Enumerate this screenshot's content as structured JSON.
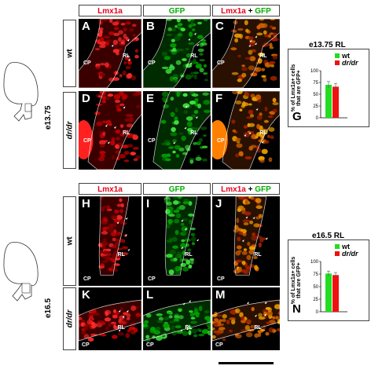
{
  "figure": {
    "stage_top": "e13.75",
    "stage_bottom": "e16.5",
    "header_lmx": "Lmx1a",
    "header_gfp": "GFP",
    "header_merge_a": "Lmx1a",
    "header_merge_plus": " + ",
    "header_merge_b": "GFP",
    "row_wt": "wt",
    "row_drdr": "dr/dr",
    "panel_labels": {
      "A": "A",
      "B": "B",
      "C": "C",
      "D": "D",
      "E": "E",
      "F": "F",
      "H": "H",
      "I": "I",
      "J": "J",
      "K": "K",
      "L": "L",
      "M": "M"
    },
    "tissue_cp": "CP",
    "tissue_rl": "RL",
    "colors": {
      "lmx": "#e8001c",
      "gfp": "#00b000",
      "wt_bar": "#22dd22",
      "drdr_bar": "#ee1111"
    }
  },
  "chart_data": [
    {
      "type": "bar",
      "panel": "G",
      "title": "e13.75 RL",
      "categories": [
        "wt",
        "dr/dr"
      ],
      "values": [
        70,
        66
      ],
      "errors": [
        7,
        7
      ],
      "ylabel_line1": "% of Lmx1a+ cells",
      "ylabel_line2": "that are GFP+",
      "ylim": [
        0,
        100
      ],
      "yticks": [
        "0",
        "25",
        "50",
        "75",
        "100"
      ]
    },
    {
      "type": "bar",
      "panel": "N",
      "title": "e16.5 RL",
      "categories": [
        "wt",
        "dr/dr"
      ],
      "values": [
        76,
        73
      ],
      "errors": [
        5,
        5
      ],
      "ylabel_line1": "% of Lmx1a+ cells",
      "ylabel_line2": "that are GFP+",
      "ylim": [
        0,
        100
      ],
      "yticks": [
        "0",
        "25",
        "50",
        "75",
        "100"
      ]
    }
  ]
}
